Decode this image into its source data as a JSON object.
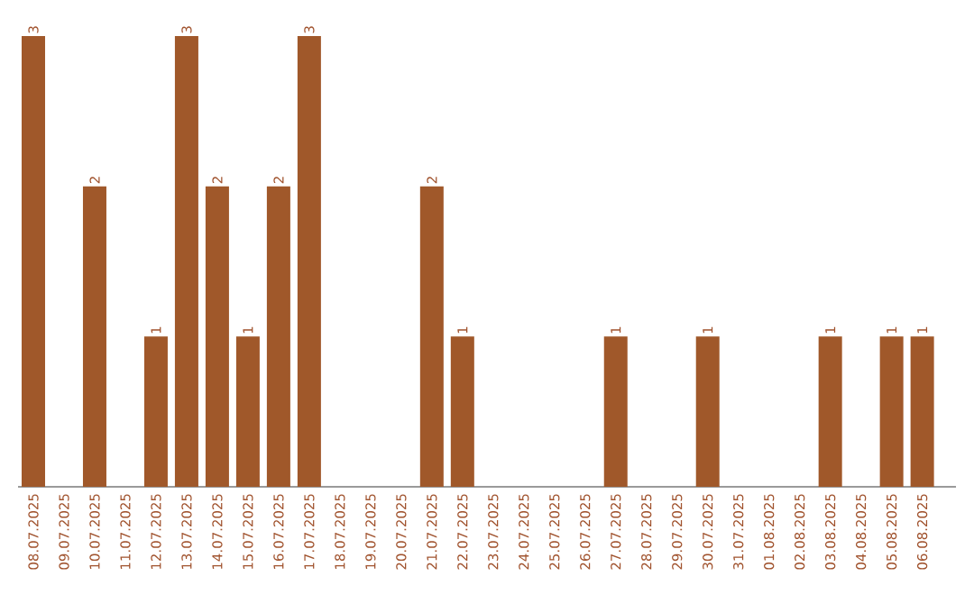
{
  "chart_data": {
    "type": "bar",
    "categories": [
      "08.07.2025",
      "09.07.2025",
      "10.07.2025",
      "11.07.2025",
      "12.07.2025",
      "13.07.2025",
      "14.07.2025",
      "15.07.2025",
      "16.07.2025",
      "17.07.2025",
      "18.07.2025",
      "19.07.2025",
      "20.07.2025",
      "21.07.2025",
      "22.07.2025",
      "23.07.2025",
      "24.07.2025",
      "25.07.2025",
      "26.07.2025",
      "27.07.2025",
      "28.07.2025",
      "29.07.2025",
      "30.07.2025",
      "31.07.2025",
      "01.08.2025",
      "02.08.2025",
      "03.08.2025",
      "04.08.2025",
      "05.08.2025",
      "06.08.2025"
    ],
    "values": [
      3,
      0,
      2,
      0,
      1,
      3,
      2,
      1,
      2,
      3,
      0,
      0,
      0,
      2,
      1,
      0,
      0,
      0,
      0,
      1,
      0,
      0,
      1,
      0,
      0,
      0,
      1,
      0,
      1,
      1
    ],
    "value_labels": [
      "3",
      null,
      "2",
      null,
      "1",
      "3",
      "2",
      "1",
      "2",
      "3",
      null,
      null,
      null,
      "2",
      "1",
      null,
      null,
      null,
      null,
      "1",
      null,
      null,
      "1",
      null,
      null,
      null,
      "1",
      null,
      "1",
      "1"
    ],
    "color": "#a0582a"
  }
}
